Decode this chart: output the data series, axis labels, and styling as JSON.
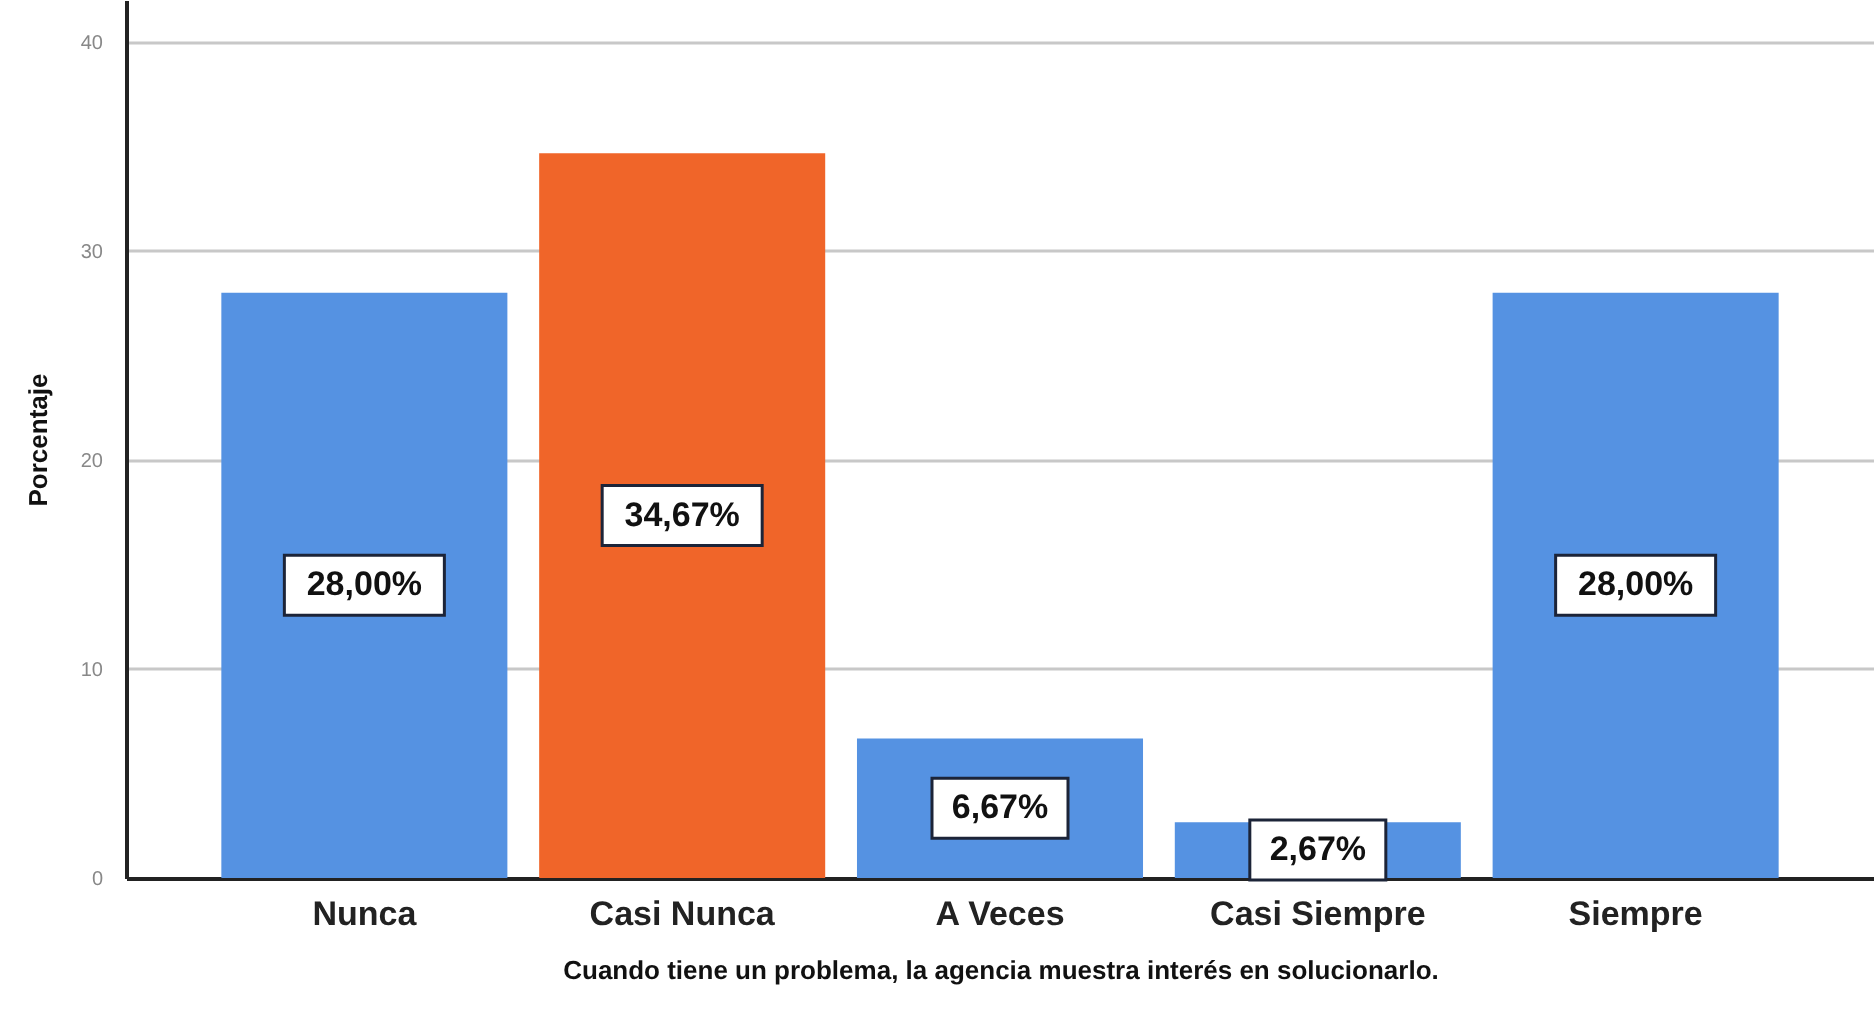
{
  "chart_data": {
    "type": "bar",
    "xlabel": "Cuando tiene un problema, la agencia muestra interés en solucionarlo.",
    "ylabel": "Porcentaje",
    "categories": [
      "Nunca",
      "Casi Nunca",
      "A Veces",
      "Casi Siempre",
      "Siempre"
    ],
    "values": [
      28.0,
      34.67,
      6.67,
      2.67,
      28.0
    ],
    "colors": [
      "#5592e2",
      "#f06529",
      "#5592e2",
      "#5592e2",
      "#5592e2"
    ],
    "value_labels": [
      "28,00%",
      "34,67%",
      "6,67%",
      "2,67%",
      "28,00%"
    ],
    "ylim": [
      0,
      42
    ],
    "yticks": [
      0,
      10,
      20,
      30,
      40
    ],
    "grid": "y"
  }
}
